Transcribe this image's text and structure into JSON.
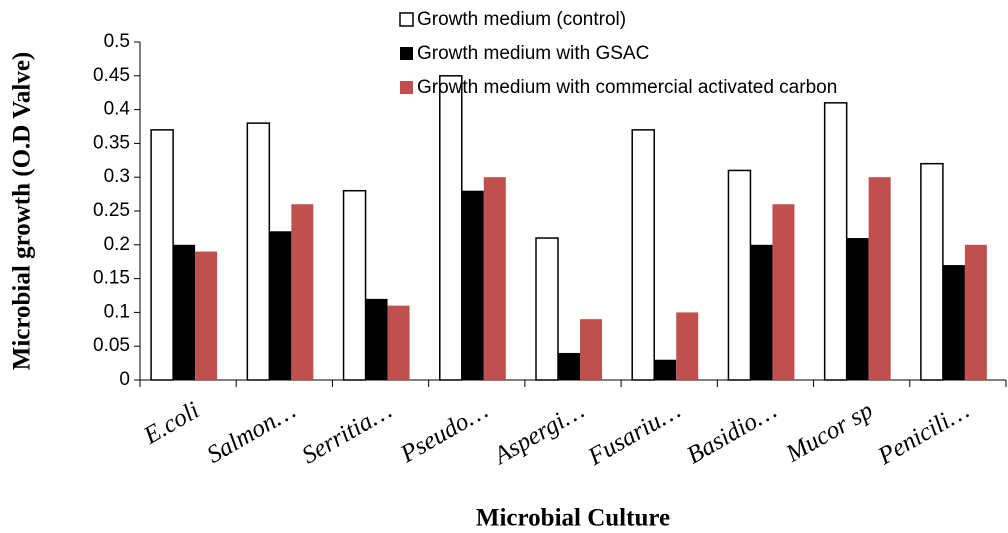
{
  "chart_data": {
    "type": "bar",
    "x_label": "Microbial Culture",
    "y_label": "Microbial growth (O.D Valve)",
    "categories": [
      "E.coli",
      "Salmon…",
      "Serritia…",
      "Pseudo…",
      "Aspergi…",
      "Fusariu…",
      "Basidio…",
      "Mucor sp",
      "Penicili…"
    ],
    "series": [
      {
        "name": "Growth medium (control)",
        "color": "#ffffff",
        "values": [
          0.37,
          0.38,
          0.28,
          0.45,
          0.21,
          0.37,
          0.31,
          0.41,
          0.32
        ]
      },
      {
        "name": "Growth medium with GSAC",
        "color": "#000000",
        "values": [
          0.2,
          0.22,
          0.12,
          0.28,
          0.04,
          0.03,
          0.2,
          0.21,
          0.17
        ]
      },
      {
        "name": "Growth medium with commercial activated carbon",
        "color": "#c0504d",
        "values": [
          0.19,
          0.26,
          0.11,
          0.3,
          0.09,
          0.1,
          0.26,
          0.3,
          0.2
        ]
      }
    ],
    "ylim": [
      0,
      0.5
    ],
    "yticks": [
      0,
      0.05,
      0.1,
      0.15,
      0.2,
      0.25,
      0.3,
      0.35,
      0.4,
      0.45,
      0.5
    ]
  }
}
